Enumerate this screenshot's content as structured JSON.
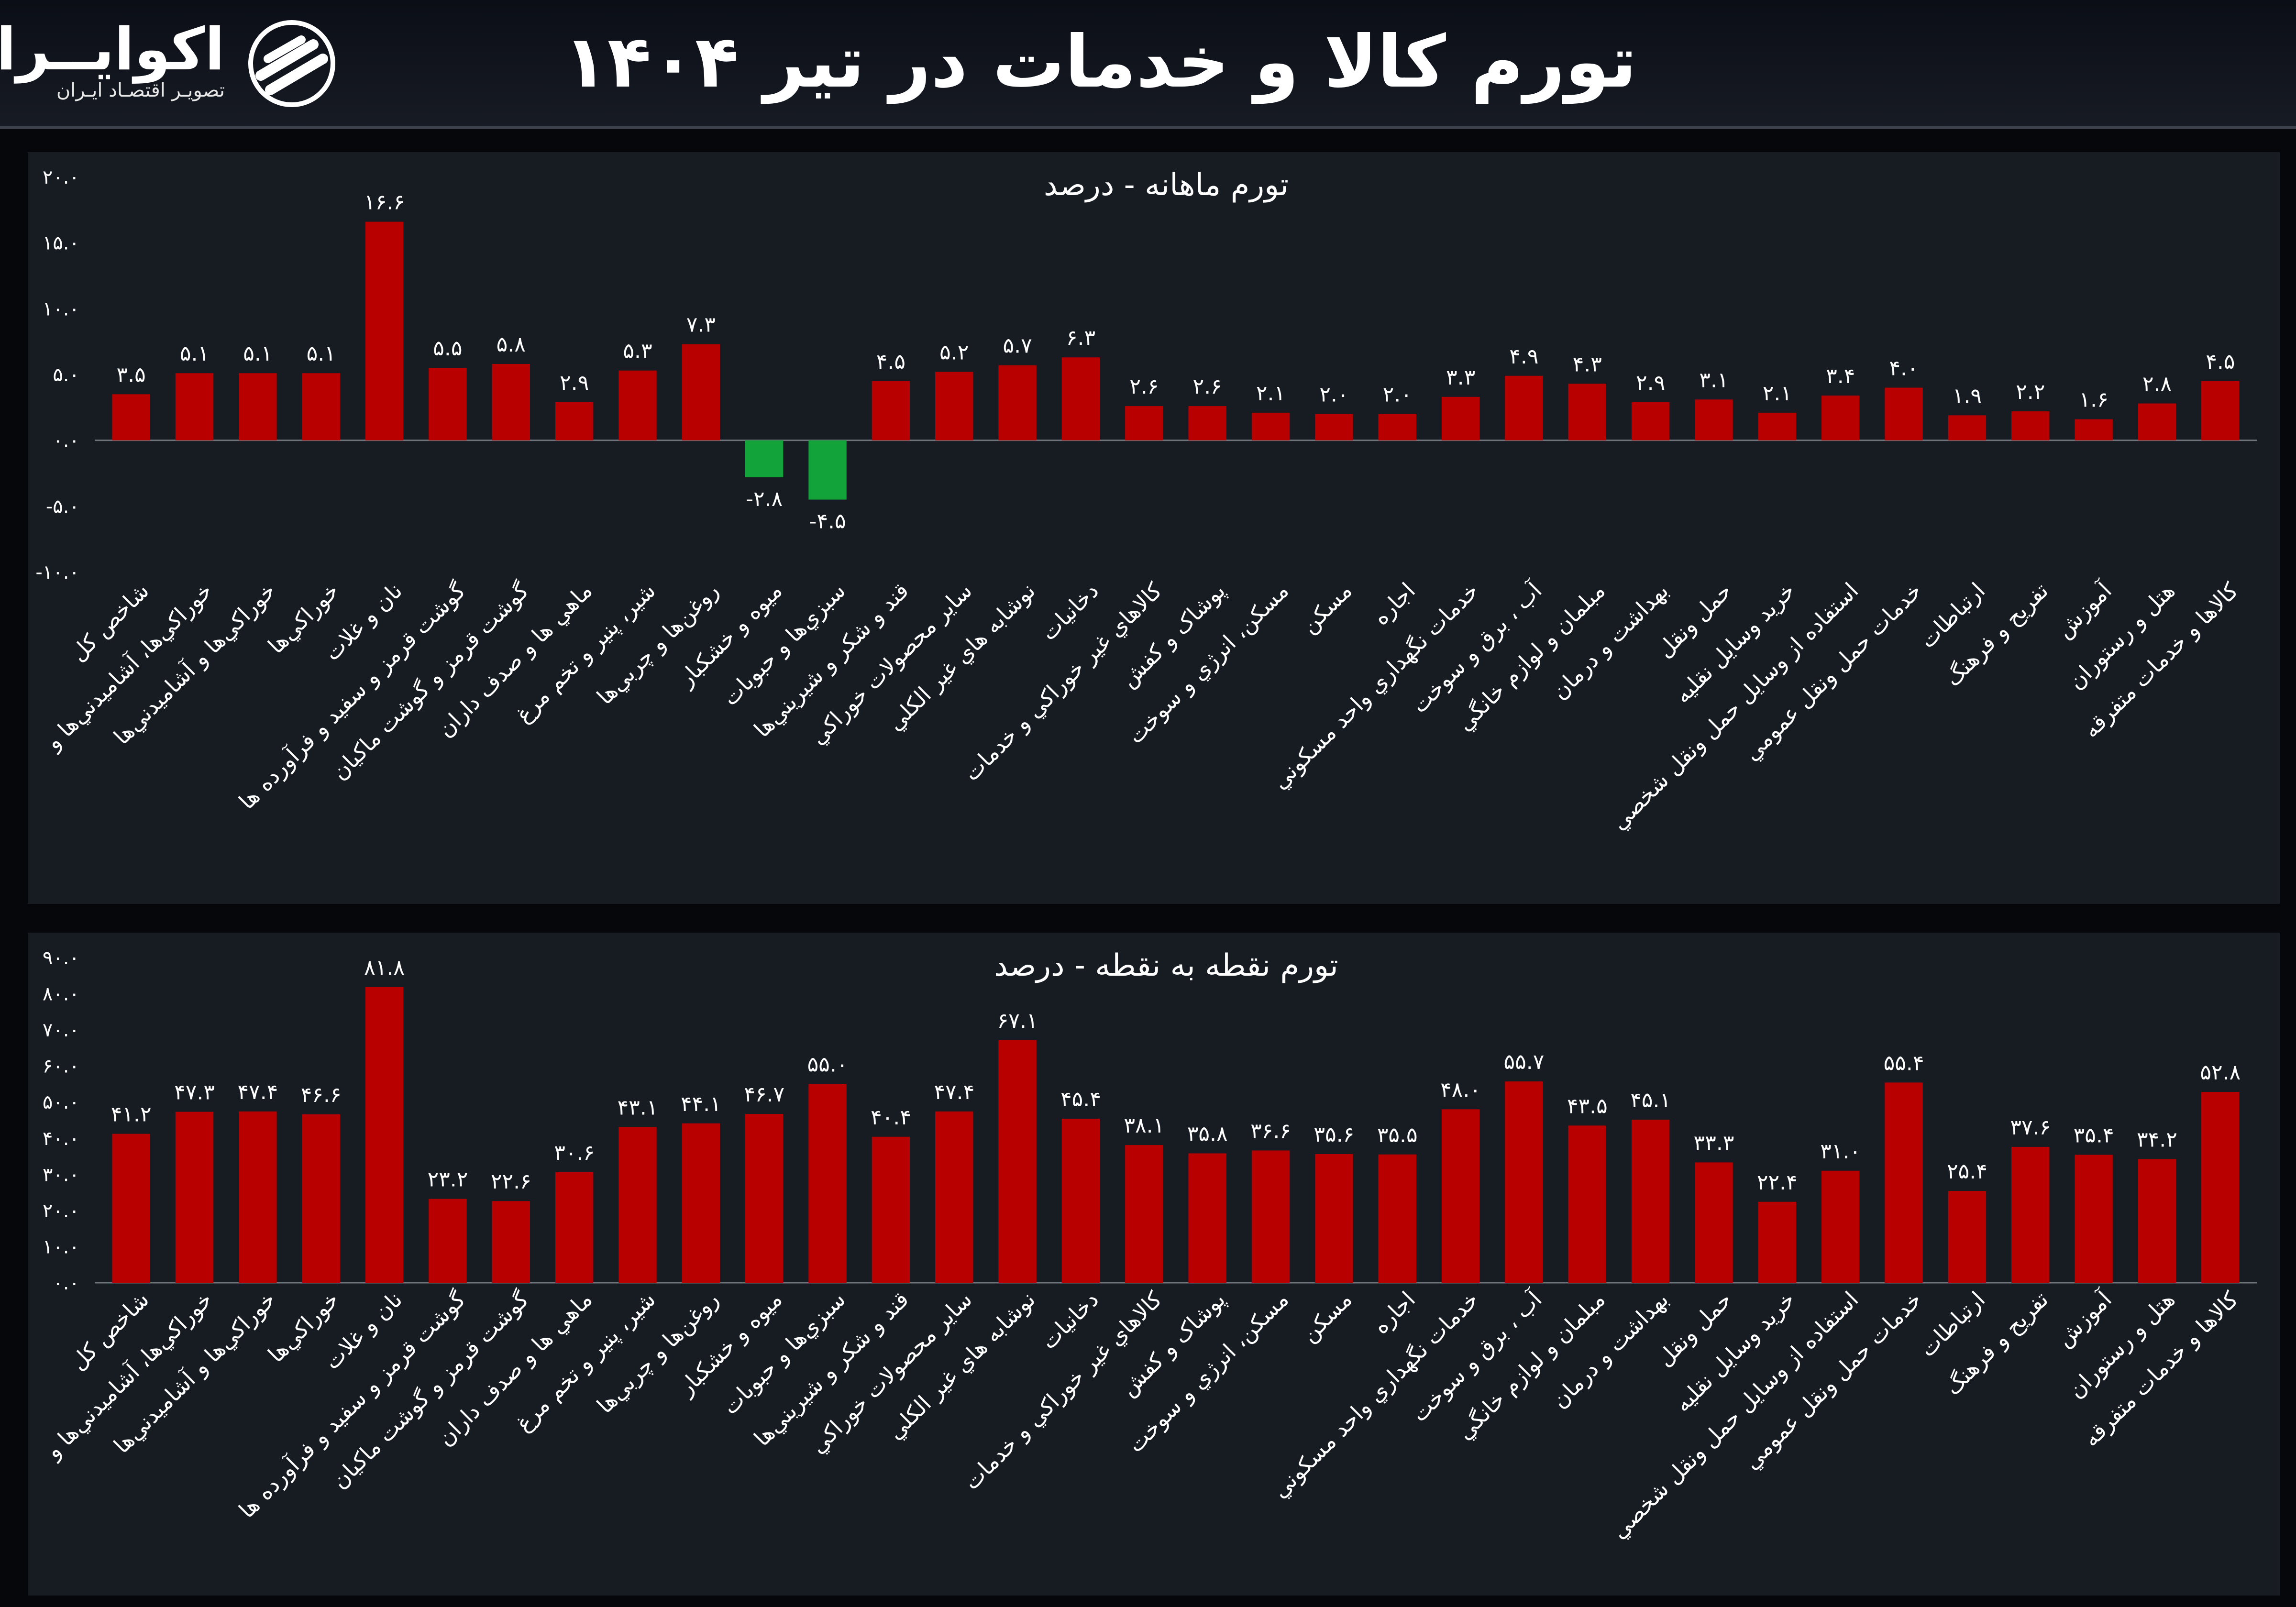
{
  "header": {
    "title": "تورم کالا و خدمات در تیر ۱۴۰۴",
    "brand_name": "اکوایــران",
    "brand_tagline": "تصویـر اقتصـاد ایـران",
    "logo_icon": "ecoiran-logo-icon"
  },
  "colors": {
    "positive_bar": "#b80000",
    "negative_bar": "#12a33a",
    "panel_bg": "#171b22",
    "page_bg": "#05070b"
  },
  "chart_data": [
    {
      "type": "bar",
      "title": "تورم ماهانه - درصد",
      "ylim": [
        -10,
        20
      ],
      "yticks": [
        "۲۰.۰",
        "۱۵.۰",
        "۱۰.۰",
        "۵.۰",
        "۰.۰",
        "-۵.۰",
        "-۱۰.۰"
      ],
      "ytick_values": [
        20,
        15,
        10,
        5,
        0,
        -5,
        -10
      ],
      "grid": false,
      "categories": [
        "شاخص کل",
        "خوراکي‌ها، آشاميدني‌ها و",
        "خوراکي‌ها و آشاميدني‌ها",
        "خوراکي‌ها",
        "نان و غلات",
        "گوشت قرمز و سفيد و فرآورده ها",
        "گوشت قرمز و گوشت ماکيان",
        "ماهي ها و صدف داران",
        "شير، پنير و تخم مرغ",
        "روغن‌ها و چربي‌ها",
        "ميوه و خشکبار",
        "سبزي‌ها و حبوبات",
        "قند و شکر و شيريني‌ها",
        "ساير محصولات خوراکي",
        "نوشابه هاي غير الکلي",
        "دخانيات",
        "کالاهاي غير خوراکي و خدمات",
        "پوشاک و کفش",
        "مسکن، انرژي و سوخت",
        "مسکن",
        "اجاره",
        "خدمات نگهداري واحد مسکوني",
        "آب ، برق و سوخت",
        "مبلمان و لوازم خانگي",
        "بهداشت و درمان",
        "حمل ونقل",
        "خريد وسايل نقليه",
        "استفاده از وسايل حمل ونقل شخصي",
        "خدمات حمل ونقل عمومي",
        "ارتباطات",
        "تفريح و فرهنگ",
        "آموزش",
        "هتل و رستوران",
        "کالاها و خدمات متفرقه"
      ],
      "values": [
        3.5,
        5.1,
        5.1,
        5.1,
        16.6,
        5.5,
        5.8,
        2.9,
        5.3,
        7.3,
        -2.8,
        -4.5,
        4.5,
        5.2,
        5.7,
        6.3,
        2.6,
        2.6,
        2.1,
        2.0,
        2.0,
        3.3,
        4.9,
        4.3,
        2.9,
        3.1,
        2.1,
        3.4,
        4.0,
        1.9,
        2.2,
        1.6,
        2.8,
        4.5
      ],
      "value_labels": [
        "۳.۵",
        "۵.۱",
        "۵.۱",
        "۵.۱",
        "۱۶.۶",
        "۵.۵",
        "۵.۸",
        "۲.۹",
        "۵.۳",
        "۷.۳",
        "-۲.۸",
        "-۴.۵",
        "۴.۵",
        "۵.۲",
        "۵.۷",
        "۶.۳",
        "۲.۶",
        "۲.۶",
        "۲.۱",
        "۲.۰",
        "۲.۰",
        "۳.۳",
        "۴.۹",
        "۴.۳",
        "۲.۹",
        "۳.۱",
        "۲.۱",
        "۳.۴",
        "۴.۰",
        "۱.۹",
        "۲.۲",
        "۱.۶",
        "۲.۸",
        "۴.۵"
      ]
    },
    {
      "type": "bar",
      "title": "تورم نقطه به نقطه - درصد",
      "ylim": [
        0,
        90
      ],
      "yticks": [
        "۹۰.۰",
        "۸۰.۰",
        "۷۰.۰",
        "۶۰.۰",
        "۵۰.۰",
        "۴۰.۰",
        "۳۰.۰",
        "۲۰.۰",
        "۱۰.۰",
        "۰.۰"
      ],
      "ytick_values": [
        90,
        80,
        70,
        60,
        50,
        40,
        30,
        20,
        10,
        0
      ],
      "grid": false,
      "categories": [
        "شاخص کل",
        "خوراکي‌ها، آشاميدني‌ها و",
        "خوراکي‌ها و آشاميدني‌ها",
        "خوراکي‌ها",
        "نان و غلات",
        "گوشت قرمز و سفيد و فرآورده ها",
        "گوشت قرمز و گوشت ماکيان",
        "ماهي ها و صدف داران",
        "شير، پنير و تخم مرغ",
        "روغن‌ها و چربي‌ها",
        "ميوه و خشکبار",
        "سبزي‌ها و حبوبات",
        "قند و شکر و شيريني‌ها",
        "ساير محصولات خوراکي",
        "نوشابه هاي غير الکلي",
        "دخانيات",
        "کالاهاي غير خوراکي و خدمات",
        "پوشاک و کفش",
        "مسکن، انرژي و سوخت",
        "مسکن",
        "اجاره",
        "خدمات نگهداري واحد مسکوني",
        "آب ، برق و سوخت",
        "مبلمان و لوازم خانگي",
        "بهداشت و درمان",
        "حمل ونقل",
        "خريد وسايل نقليه",
        "استفاده از وسايل حمل ونقل شخصي",
        "خدمات حمل ونقل عمومي",
        "ارتباطات",
        "تفريح و فرهنگ",
        "آموزش",
        "هتل و رستوران",
        "کالاها و خدمات متفرقه"
      ],
      "values": [
        41.2,
        47.3,
        47.4,
        46.6,
        81.8,
        23.2,
        22.6,
        30.6,
        43.1,
        44.1,
        46.7,
        55.0,
        40.4,
        47.4,
        67.1,
        45.4,
        38.1,
        35.8,
        36.6,
        35.6,
        35.5,
        48.0,
        55.7,
        43.5,
        45.1,
        33.3,
        22.4,
        31.0,
        55.4,
        25.4,
        37.6,
        35.4,
        34.2,
        52.8
      ],
      "value_labels": [
        "۴۱.۲",
        "۴۷.۳",
        "۴۷.۴",
        "۴۶.۶",
        "۸۱.۸",
        "۲۳.۲",
        "۲۲.۶",
        "۳۰.۶",
        "۴۳.۱",
        "۴۴.۱",
        "۴۶.۷",
        "۵۵.۰",
        "۴۰.۴",
        "۴۷.۴",
        "۶۷.۱",
        "۴۵.۴",
        "۳۸.۱",
        "۳۵.۸",
        "۳۶.۶",
        "۳۵.۶",
        "۳۵.۵",
        "۴۸.۰",
        "۵۵.۷",
        "۴۳.۵",
        "۴۵.۱",
        "۳۳.۳",
        "۲۲.۴",
        "۳۱.۰",
        "۵۵.۴",
        "۲۵.۴",
        "۳۷.۶",
        "۳۵.۴",
        "۳۴.۲",
        "۵۲.۸"
      ]
    }
  ]
}
